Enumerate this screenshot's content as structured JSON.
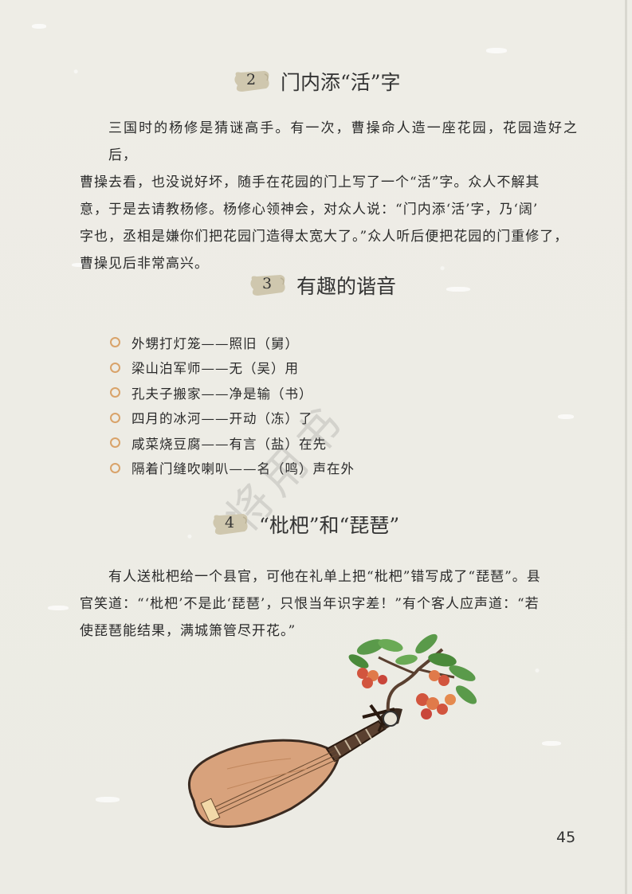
{
  "sections": [
    {
      "number": "2",
      "title": "门内添“活”字"
    },
    {
      "number": "3",
      "title": "有趣的谐音"
    },
    {
      "number": "4",
      "title": "“枇杷”和“琵琶”"
    }
  ],
  "story1": {
    "lines": [
      "三国时的杨修是猜谜高手。有一次，曹操命人造一座花园，花园造好之后，",
      "曹操去看，也没说好坏，随手在花园的门上写了一个“活”字。众人不解其",
      "意，于是去请教杨修。杨修心领神会，对众人说：“门内添‘活’字，乃‘阔’",
      "字也，丞相是嫌你们把花园门造得太宽大了。”众人听后便把花园的门重修了，",
      "曹操见后非常高兴。"
    ]
  },
  "riddles": [
    "外甥打灯笼——照旧（舅）",
    "梁山泊军师——无（吴）用",
    "孔夫子搬家——净是输（书）",
    "四月的冰河——开动（冻）了",
    "咸菜烧豆腐——有言（盐）在先",
    "隔着门缝吹喇叭——名（鸣）声在外"
  ],
  "story2": {
    "lines": [
      "有人送枇杷给一个县官，可他在礼单上把“枇杷”错写成了“琵琶”。县",
      "官笑道：“‘枇杷’不是此‘琵琶’，只恨当年识字差！”有个客人应声道：“若",
      "使琵琶能结果，满城箫管尽开花。”"
    ]
  },
  "watermark": "将用书",
  "page_number": "45",
  "colors": {
    "badge": "#cfc7ae",
    "bullet": "#d9a36a",
    "pipa_body": "#d8a27c",
    "leaf": "#5a9a4a",
    "fruit": "#d2553e"
  },
  "illustration": {
    "icon": "pipa-with-loquat-branch"
  }
}
